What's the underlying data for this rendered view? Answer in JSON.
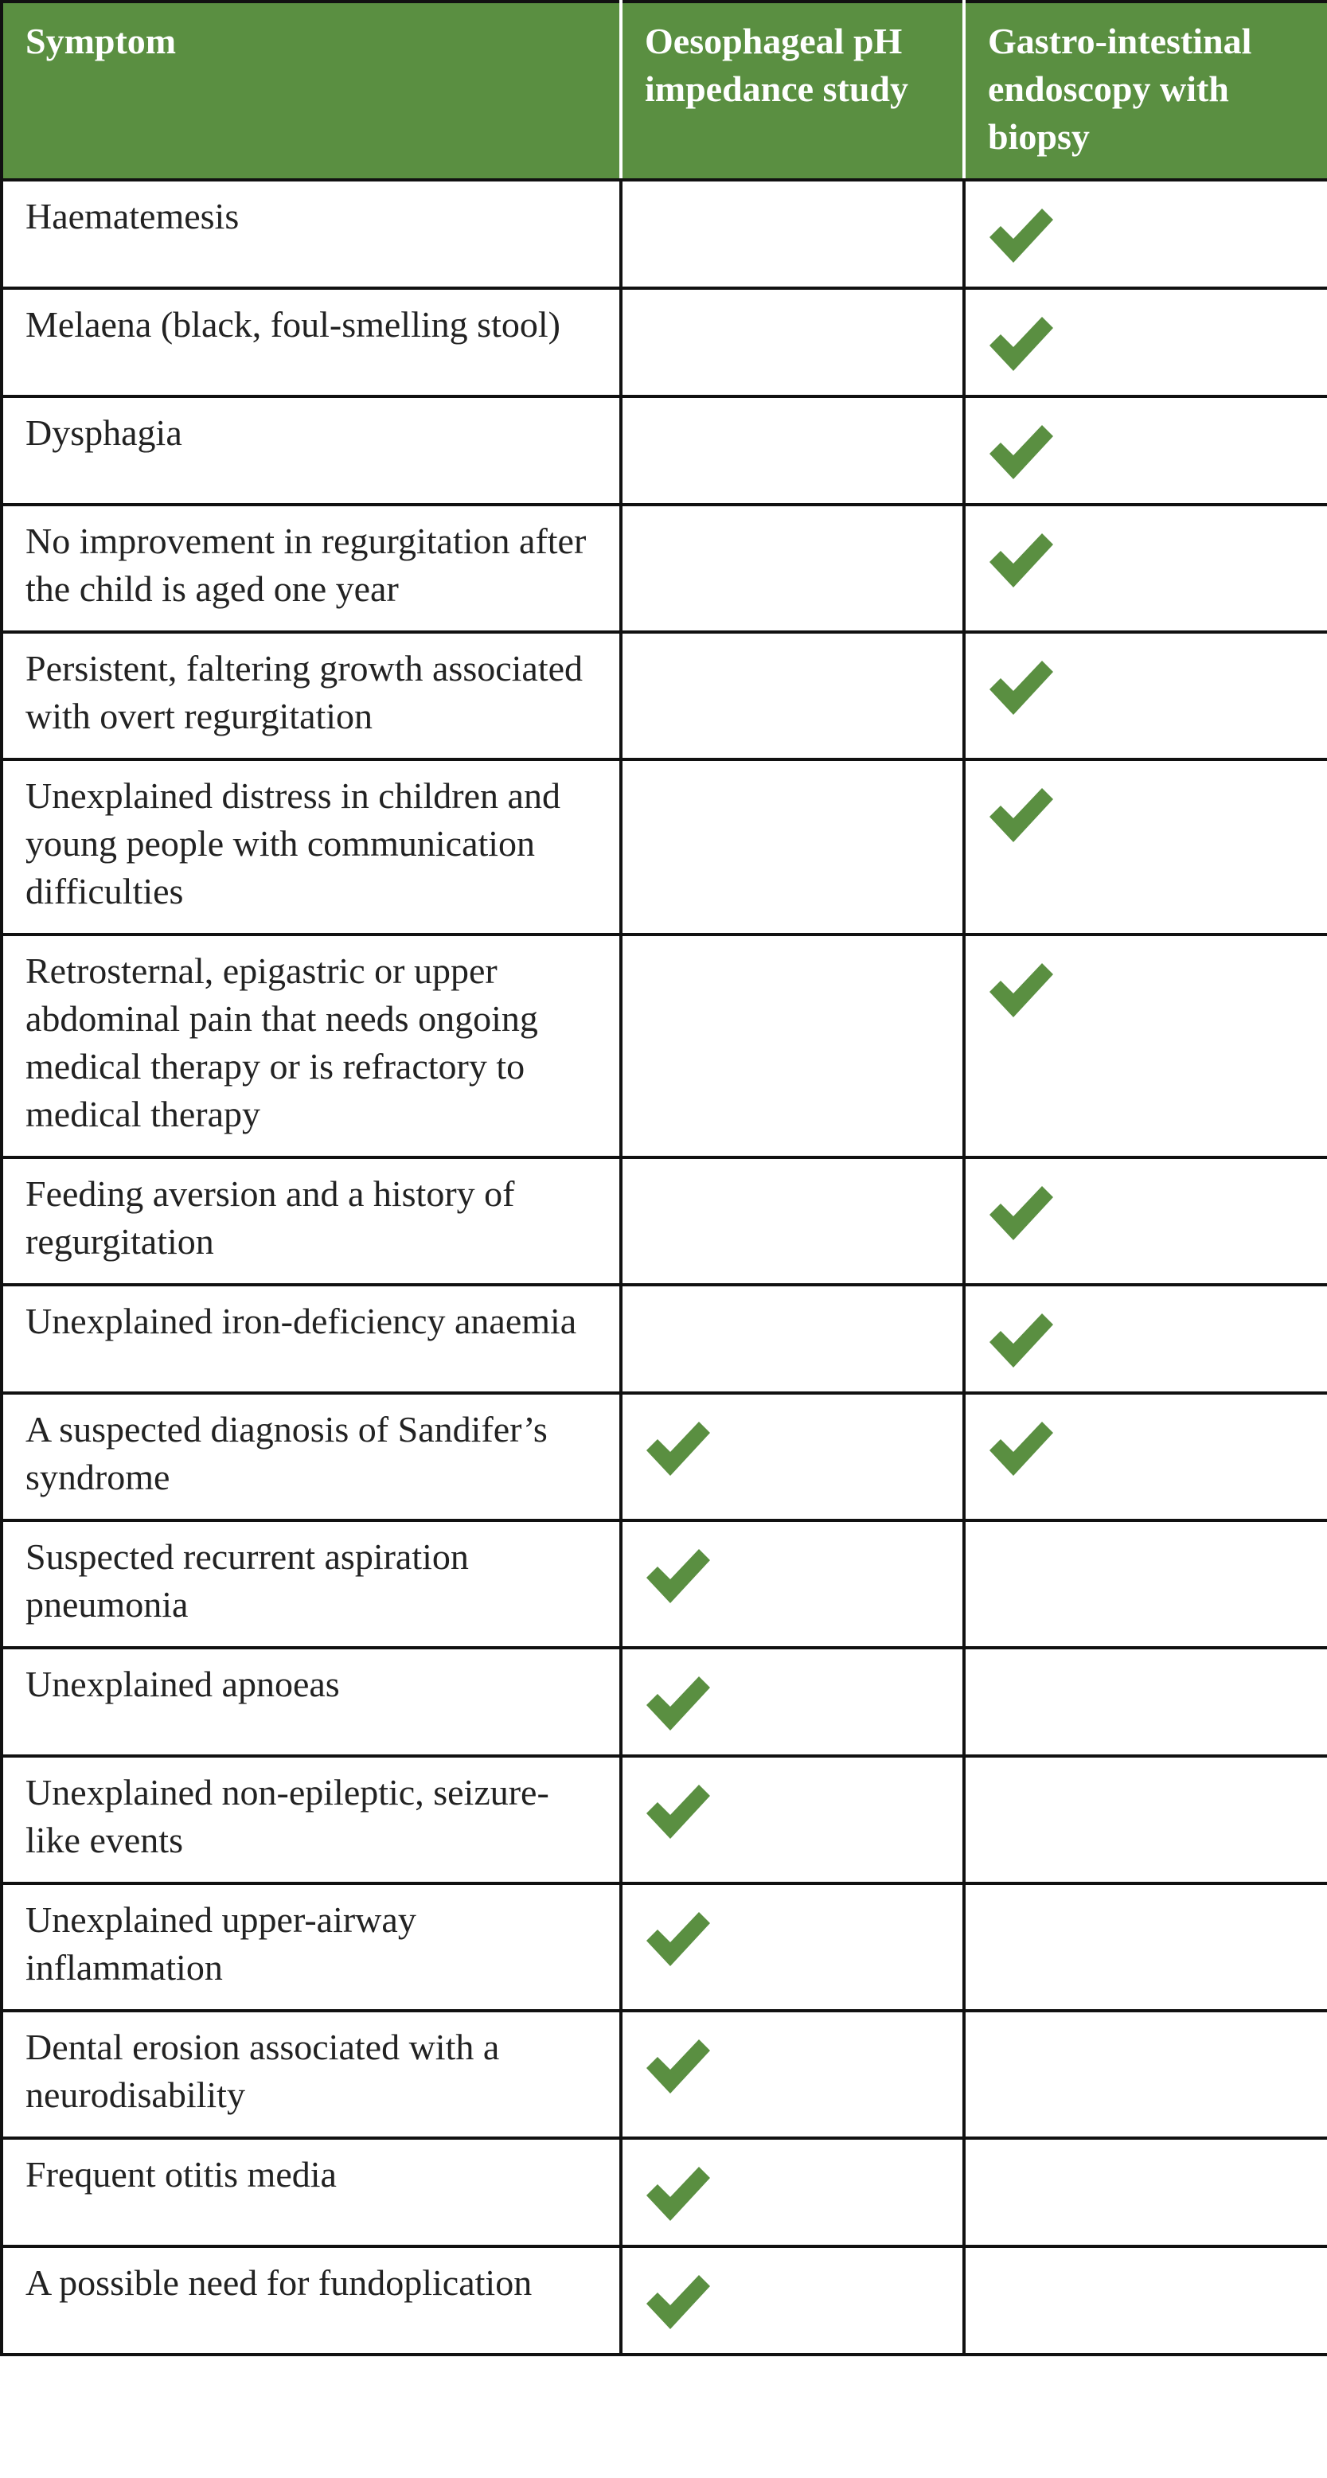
{
  "table": {
    "header": [
      "Symptom",
      "Oesophageal pH impedance study",
      "Gastro-intestinal endoscopy with biopsy"
    ],
    "rows": [
      {
        "symptom": "Haematemesis",
        "ph": false,
        "endoscopy": true
      },
      {
        "symptom": "Melaena (black, foul-smelling stool)",
        "ph": false,
        "endoscopy": true
      },
      {
        "symptom": "Dysphagia",
        "ph": false,
        "endoscopy": true
      },
      {
        "symptom": "No improvement in regurgitation after the child is aged one year",
        "ph": false,
        "endoscopy": true
      },
      {
        "symptom": "Persistent, faltering growth associated with overt regurgitation",
        "ph": false,
        "endoscopy": true
      },
      {
        "symptom": "Unexplained distress in children and young people with communication difficulties",
        "ph": false,
        "endoscopy": true
      },
      {
        "symptom": "Retrosternal, epigastric or upper abdominal pain that needs ongoing medical therapy or is refractory to medical therapy",
        "ph": false,
        "endoscopy": true
      },
      {
        "symptom": "Feeding aversion and a history of regurgitation",
        "ph": false,
        "endoscopy": true
      },
      {
        "symptom": "Unexplained iron-deficiency anaemia",
        "ph": false,
        "endoscopy": true
      },
      {
        "symptom": "A suspected diagnosis of Sandifer’s syndrome",
        "ph": true,
        "endoscopy": true
      },
      {
        "symptom": "Suspected recurrent aspiration pneumonia",
        "ph": true,
        "endoscopy": false
      },
      {
        "symptom": "Unexplained apnoeas",
        "ph": true,
        "endoscopy": false
      },
      {
        "symptom": "Unexplained non-epileptic, seizure-like events",
        "ph": true,
        "endoscopy": false
      },
      {
        "symptom": "Unexplained upper-airway inflammation",
        "ph": true,
        "endoscopy": false
      },
      {
        "symptom": "Dental erosion associated with a neurodisability",
        "ph": true,
        "endoscopy": false
      },
      {
        "symptom": "Frequent otitis media",
        "ph": true,
        "endoscopy": false
      },
      {
        "symptom": "A possible need for fundoplication",
        "ph": true,
        "endoscopy": false
      }
    ]
  }
}
